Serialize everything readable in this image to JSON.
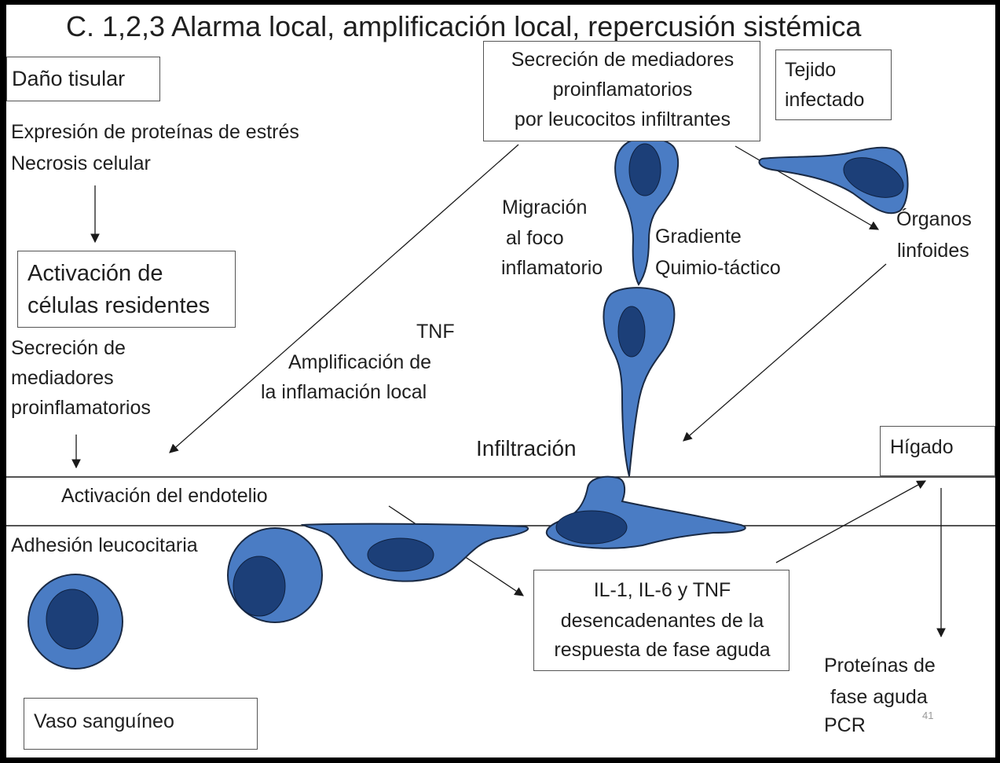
{
  "title": "C. 1,2,3 Alarma local, amplificación local, repercusión sistémica",
  "labels": {
    "dano_tisular": "Daño tisular",
    "expresion": "Expresión de proteínas de estrés",
    "necrosis": "Necrosis celular",
    "activacion_1": "Activación de",
    "activacion_2": "células residentes",
    "secrecion_local_1": "Secreción de",
    "secrecion_local_2": "mediadores",
    "secrecion_local_3": "proinflamatorios",
    "tnf": "TNF",
    "amplificacion_1": "Amplificación de",
    "amplificacion_2": "la inflamación local",
    "secrecion_top_1": "Secreción de mediadores",
    "secrecion_top_2": "proinflamatorios",
    "secrecion_top_3": "por leucocitos infiltrantes",
    "migracion_1": "Migración",
    "migracion_2": "al foco",
    "migracion_3": "inflamatorio",
    "gradiente_1": "Gradiente",
    "gradiente_2": "Quimio-táctico",
    "tejido_1": "Tejido",
    "tejido_2": "infectado",
    "organos_1": "Órganos",
    "organos_2": "linfoides",
    "infiltracion": "Infiltración",
    "higado": "Hígado",
    "activacion_endotelio": "Activación del endotelio",
    "adhesion": "Adhesión leucocitaria",
    "il_1": "IL-1, IL-6 y TNF",
    "il_2": "desencadenantes de la",
    "il_3": "respuesta de fase aguda",
    "proteinas_1": "Proteínas de",
    "proteinas_2": "fase aguda",
    "proteinas_3": "PCR",
    "vaso": "Vaso sanguíneo",
    "page_number": "41"
  },
  "colors": {
    "cell_fill": "#4a7cc4",
    "cell_nucleus": "#1c3f78",
    "cell_outline": "#1a2a44",
    "line": "#1a1a1a"
  }
}
